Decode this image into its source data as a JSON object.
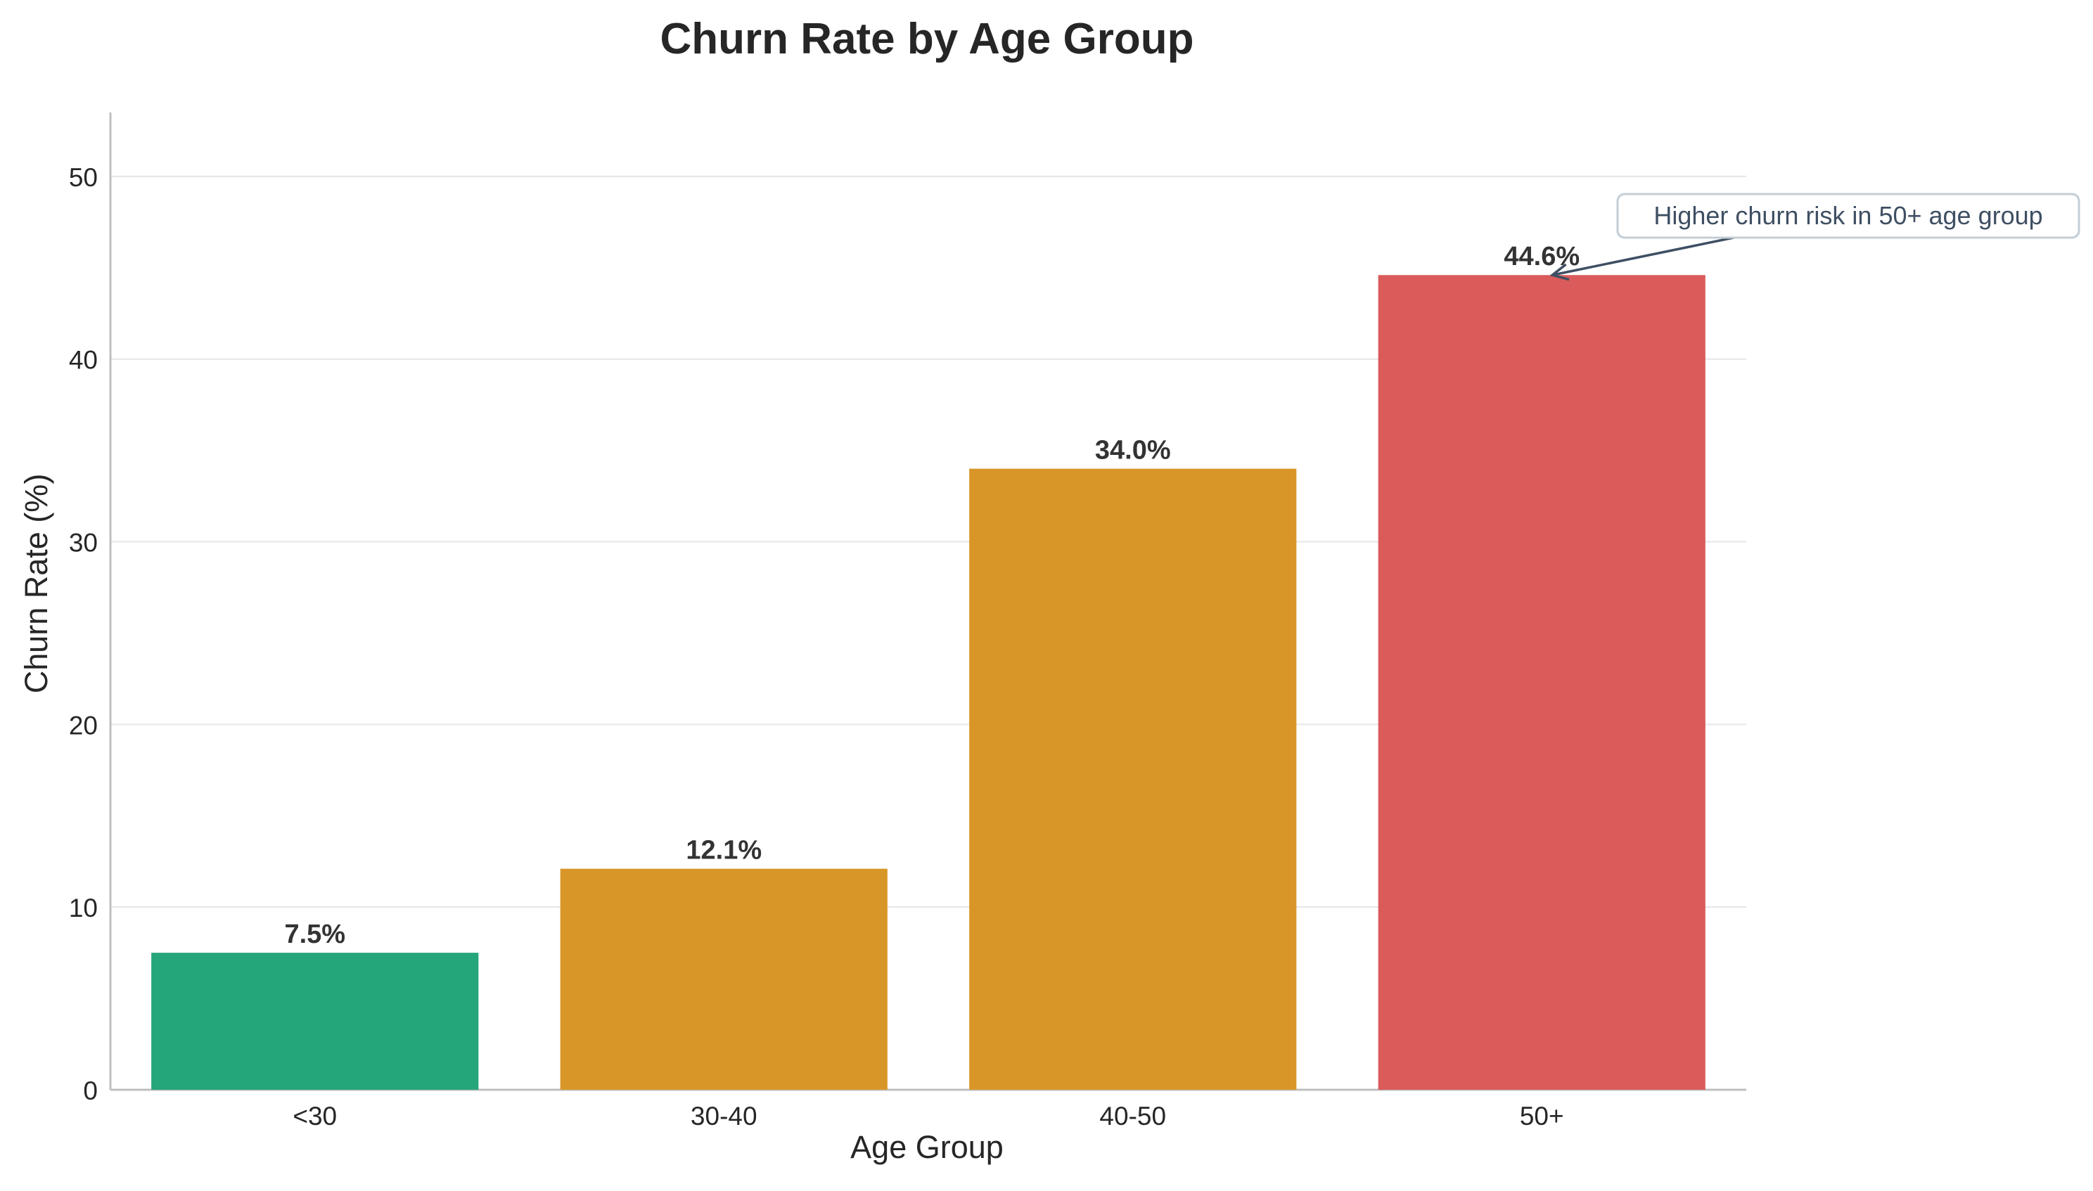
{
  "chart_data": {
    "type": "bar",
    "title": "Churn Rate by Age Group",
    "xlabel": "Age Group",
    "ylabel": "Churn Rate (%)",
    "categories": [
      "<30",
      "30-40",
      "40-50",
      "50+"
    ],
    "values": [
      7.5,
      12.1,
      34.0,
      44.6
    ],
    "value_labels": [
      "7.5%",
      "12.1%",
      "34.0%",
      "44.6%"
    ],
    "colors": [
      "#25a57a",
      "#d99628",
      "#d99628",
      "#db5b5b"
    ],
    "ylim": [
      0,
      53.5
    ],
    "yticks": [
      0,
      10,
      20,
      30,
      40,
      50
    ],
    "grid": "horizontal",
    "annotation": {
      "text": "Higher churn risk in 50+ age group",
      "target_category": "50+",
      "target_value": 44.6
    }
  }
}
